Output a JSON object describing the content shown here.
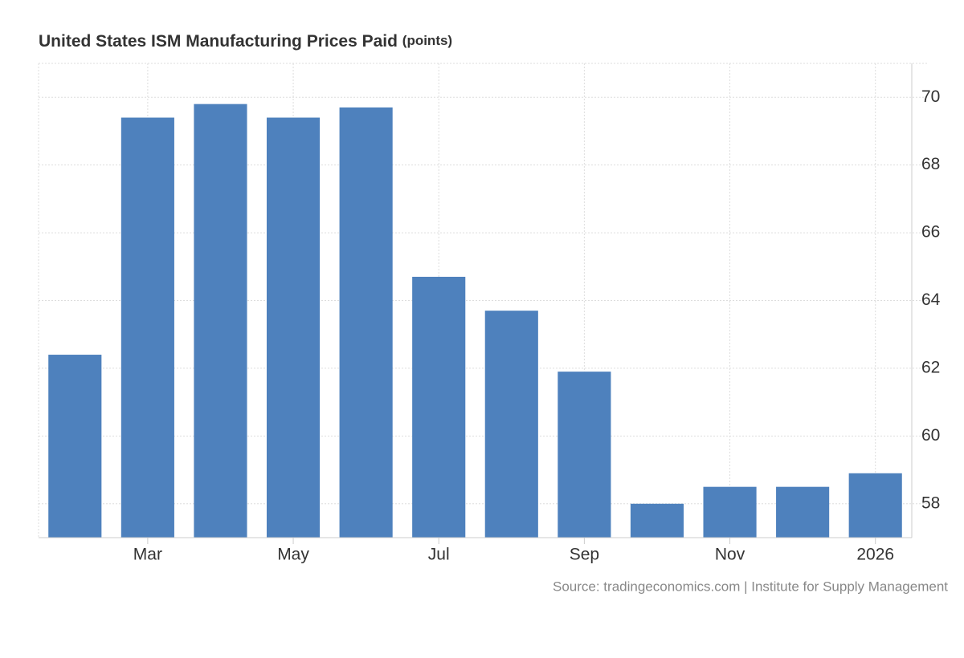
{
  "chart_data": {
    "type": "bar",
    "title": "United States ISM Manufacturing Prices Paid",
    "unit": "(points)",
    "source": "Source: tradingeconomics.com | Institute for Supply Management",
    "categories": [
      null,
      "Mar",
      null,
      "May",
      null,
      "Jul",
      null,
      "Sep",
      null,
      "Nov",
      null,
      "2026"
    ],
    "values": [
      62.4,
      69.4,
      69.8,
      69.4,
      69.7,
      64.7,
      63.7,
      61.9,
      58.0,
      58.5,
      58.5,
      58.9
    ],
    "color": "#4e81bd",
    "ylim": [
      57,
      71
    ],
    "yticks": [
      58,
      60,
      62,
      64,
      66,
      68,
      70
    ],
    "grid": true,
    "y_axis_side": "right"
  }
}
